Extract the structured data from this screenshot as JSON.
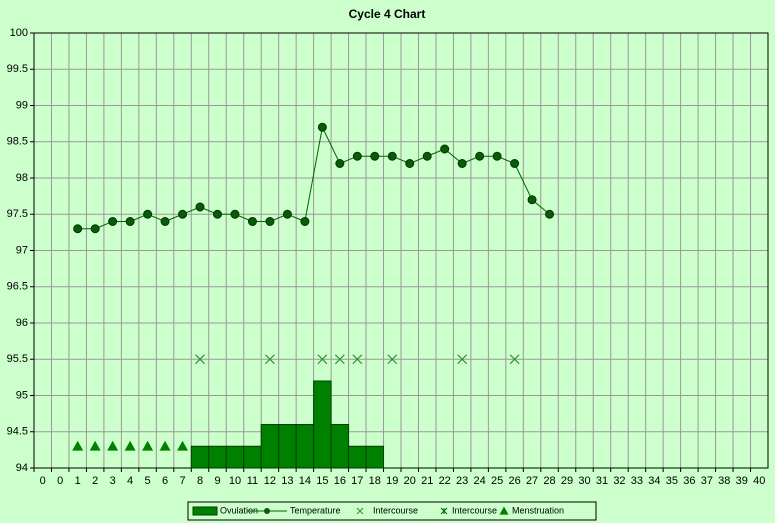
{
  "chart_data": {
    "type": "combo",
    "title": "Cycle 4 Chart",
    "categories": [
      "0",
      "0",
      "1",
      "2",
      "3",
      "4",
      "5",
      "6",
      "7",
      "8",
      "9",
      "10",
      "11",
      "12",
      "13",
      "14",
      "15",
      "16",
      "17",
      "18",
      "19",
      "20",
      "21",
      "22",
      "23",
      "24",
      "25",
      "26",
      "27",
      "28",
      "29",
      "30",
      "31",
      "32",
      "33",
      "34",
      "35",
      "36",
      "37",
      "38",
      "39",
      "40"
    ],
    "ylim": [
      94,
      100
    ],
    "yticks": [
      94,
      94.5,
      95,
      95.5,
      96,
      96.5,
      97,
      97.5,
      98,
      98.5,
      99,
      99.5,
      100
    ],
    "grid": true,
    "series": [
      {
        "name": "Ovulation",
        "kind": "bar",
        "color": "#008000",
        "values": [
          null,
          null,
          null,
          null,
          null,
          null,
          null,
          null,
          null,
          94.3,
          94.3,
          94.3,
          94.3,
          94.6,
          94.6,
          94.6,
          95.2,
          94.6,
          94.3,
          94.3,
          null,
          null,
          null,
          null,
          null,
          null,
          null,
          null,
          null,
          null,
          null,
          null,
          null,
          null,
          null,
          null,
          null,
          null,
          null,
          null,
          null,
          null
        ]
      },
      {
        "name": "Temperature",
        "kind": "line",
        "color": "#006600",
        "values": [
          null,
          null,
          97.3,
          97.3,
          97.4,
          97.4,
          97.5,
          97.4,
          97.5,
          97.6,
          97.5,
          97.5,
          97.4,
          97.4,
          97.5,
          97.4,
          98.7,
          98.2,
          98.3,
          98.3,
          98.3,
          98.2,
          98.3,
          98.4,
          98.2,
          98.3,
          98.3,
          98.2,
          97.7,
          97.5,
          null,
          null,
          null,
          null,
          null,
          null,
          null,
          null,
          null,
          null,
          null,
          null
        ]
      },
      {
        "name": "Intercourse",
        "kind": "cross",
        "color": "#2e8b2e",
        "values": [
          null,
          null,
          null,
          null,
          null,
          null,
          null,
          null,
          null,
          95.5,
          null,
          null,
          null,
          95.5,
          null,
          null,
          95.5,
          95.5,
          95.5,
          null,
          95.5,
          null,
          null,
          null,
          95.5,
          null,
          null,
          95.5,
          null,
          null,
          null,
          null,
          null,
          null,
          null,
          null,
          null,
          null,
          null,
          null,
          null,
          null
        ]
      },
      {
        "name": "Intercourse",
        "kind": "star",
        "color": "#006600",
        "values": [
          null,
          null,
          null,
          null,
          null,
          null,
          null,
          null,
          null,
          null,
          null,
          null,
          null,
          null,
          null,
          null,
          null,
          null,
          null,
          null,
          null,
          null,
          null,
          null,
          null,
          null,
          null,
          null,
          null,
          null,
          null,
          null,
          null,
          null,
          null,
          null,
          null,
          null,
          null,
          null,
          null,
          null
        ]
      },
      {
        "name": "Menstruation",
        "kind": "triangle",
        "color": "#008000",
        "values": [
          null,
          null,
          94.3,
          94.3,
          94.3,
          94.3,
          94.3,
          94.3,
          94.3,
          null,
          null,
          null,
          null,
          null,
          null,
          null,
          null,
          null,
          null,
          null,
          null,
          null,
          null,
          null,
          null,
          null,
          null,
          null,
          null,
          null,
          null,
          null,
          null,
          null,
          null,
          null,
          null,
          null,
          null,
          null,
          null,
          null
        ]
      }
    ]
  }
}
